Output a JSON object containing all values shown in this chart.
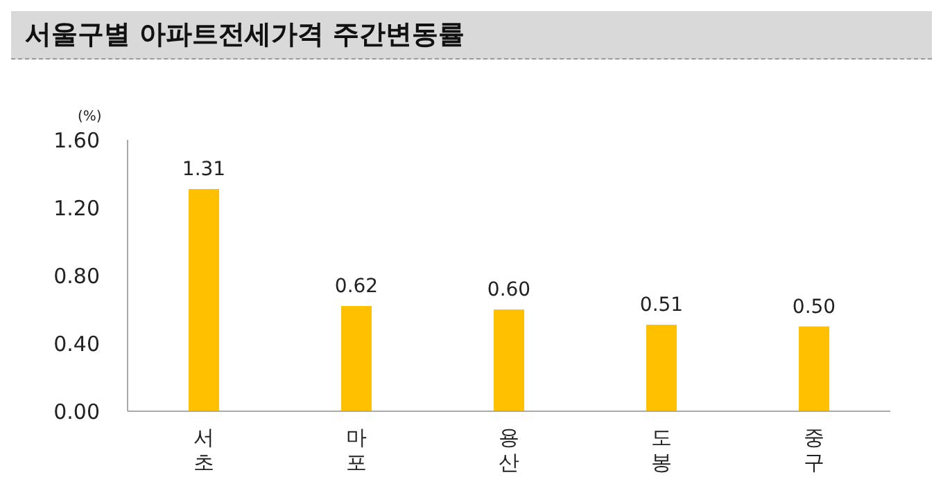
{
  "chart_data": {
    "type": "bar",
    "title": "서울구별 아파트전세가격 주간변동률",
    "ylabel": "(%)",
    "categories": [
      "서초",
      "마포",
      "용산",
      "도봉",
      "중구"
    ],
    "values": [
      1.31,
      0.62,
      0.6,
      0.51,
      0.5
    ],
    "value_labels": [
      "1.31",
      "0.62",
      "0.60",
      "0.51",
      "0.50"
    ],
    "color": "#ffc000",
    "ylim": [
      0,
      1.6
    ],
    "yticks": [
      {
        "value": 0,
        "label": "0.00"
      },
      {
        "value": 0.4,
        "label": "0.40"
      },
      {
        "value": 0.8,
        "label": "0.80"
      },
      {
        "value": 1.2,
        "label": "1.20"
      },
      {
        "value": 1.6,
        "label": "1.60"
      }
    ],
    "grid": false,
    "legend": false
  }
}
